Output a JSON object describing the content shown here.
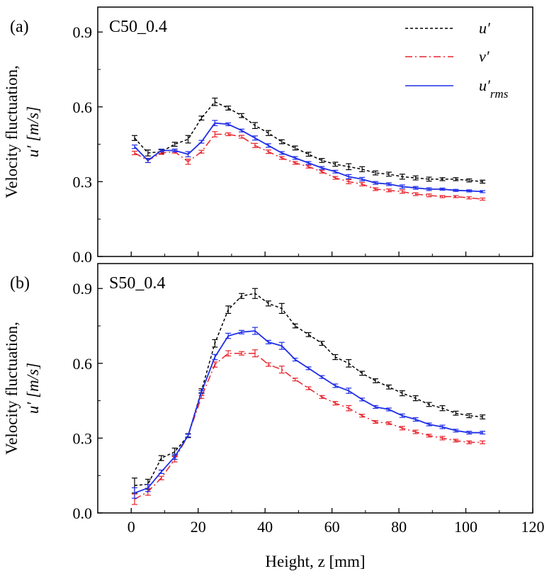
{
  "chart_data": [
    {
      "type": "line",
      "panel_label": "(a)",
      "title": "C50_0.4",
      "ylabel_line1": "Velocity fluctuation,",
      "ylabel_line2": "u′ [m/s]",
      "xlim": [
        -10,
        120
      ],
      "ylim": [
        0.0,
        1.0
      ],
      "yticks": [
        "0.0",
        "0.3",
        "0.6",
        "0.9"
      ],
      "x": [
        1,
        5,
        9,
        13,
        17,
        21,
        25,
        29,
        33,
        37,
        41,
        45,
        49,
        53,
        57,
        61,
        65,
        69,
        73,
        77,
        81,
        85,
        89,
        93,
        97,
        101,
        105
      ],
      "series": [
        {
          "name": "u′",
          "color": "#000000",
          "dash": "4,3",
          "values": [
            0.475,
            0.415,
            0.42,
            0.45,
            0.47,
            0.555,
            0.62,
            0.595,
            0.565,
            0.525,
            0.495,
            0.46,
            0.435,
            0.41,
            0.385,
            0.37,
            0.36,
            0.35,
            0.335,
            0.33,
            0.32,
            0.315,
            0.31,
            0.31,
            0.31,
            0.305,
            0.3
          ],
          "errors": [
            0.01,
            0.012,
            0.008,
            0.008,
            0.015,
            0.008,
            0.015,
            0.008,
            0.008,
            0.012,
            0.01,
            0.008,
            0.008,
            0.008,
            0.008,
            0.008,
            0.012,
            0.01,
            0.008,
            0.008,
            0.01,
            0.008,
            0.008,
            0.006,
            0.006,
            0.006,
            0.006
          ]
        },
        {
          "name": "v′",
          "color": "#e8242c",
          "dash": "10,4,2,4",
          "values": [
            0.415,
            0.385,
            0.415,
            0.42,
            0.38,
            0.42,
            0.49,
            0.49,
            0.48,
            0.445,
            0.42,
            0.395,
            0.375,
            0.36,
            0.34,
            0.315,
            0.3,
            0.29,
            0.27,
            0.265,
            0.26,
            0.25,
            0.245,
            0.24,
            0.24,
            0.235,
            0.23
          ]
        },
        {
          "name": "u′_rms",
          "color": "#1f2fe8",
          "dash": "",
          "values": [
            0.44,
            0.385,
            0.425,
            0.425,
            0.41,
            0.46,
            0.535,
            0.53,
            0.505,
            0.475,
            0.445,
            0.415,
            0.395,
            0.375,
            0.355,
            0.34,
            0.32,
            0.31,
            0.295,
            0.29,
            0.28,
            0.275,
            0.27,
            0.27,
            0.265,
            0.263,
            0.26
          ]
        }
      ]
    },
    {
      "type": "line",
      "panel_label": "(b)",
      "title": "S50_0.4",
      "ylabel_line1": "Velocity fluctuation,",
      "ylabel_line2": "u′ [m/s]",
      "xlabel": "Height, z [mm]",
      "xlim": [
        -10,
        120
      ],
      "ylim": [
        0.0,
        1.0
      ],
      "xticks": [
        "0",
        "20",
        "40",
        "60",
        "80",
        "100",
        "120"
      ],
      "yticks": [
        "0.0",
        "0.3",
        "0.6",
        "0.9"
      ],
      "x": [
        1,
        5,
        9,
        13,
        17,
        21,
        25,
        29,
        33,
        37,
        41,
        45,
        49,
        53,
        57,
        61,
        65,
        69,
        73,
        77,
        81,
        85,
        89,
        93,
        97,
        101,
        105
      ],
      "series": [
        {
          "name": "u′",
          "color": "#000000",
          "dash": "4,3",
          "values": [
            0.11,
            0.115,
            0.22,
            0.245,
            0.31,
            0.49,
            0.68,
            0.815,
            0.87,
            0.88,
            0.84,
            0.82,
            0.75,
            0.715,
            0.68,
            0.625,
            0.6,
            0.56,
            0.53,
            0.505,
            0.48,
            0.46,
            0.435,
            0.42,
            0.4,
            0.39,
            0.385
          ],
          "errors": [
            0.03,
            0.02,
            0.01,
            0.015,
            0.008,
            0.008,
            0.015,
            0.015,
            0.01,
            0.02,
            0.01,
            0.02,
            0.008,
            0.008,
            0.008,
            0.01,
            0.015,
            0.008,
            0.008,
            0.008,
            0.01,
            0.01,
            0.008,
            0.01,
            0.008,
            0.008,
            0.008
          ]
        },
        {
          "name": "v′",
          "color": "#e8242c",
          "dash": "10,4,2,4",
          "values": [
            0.055,
            0.085,
            0.14,
            0.215,
            0.31,
            0.465,
            0.595,
            0.64,
            0.64,
            0.64,
            0.595,
            0.575,
            0.535,
            0.5,
            0.465,
            0.44,
            0.42,
            0.39,
            0.365,
            0.36,
            0.34,
            0.325,
            0.31,
            0.3,
            0.29,
            0.283,
            0.283
          ]
        },
        {
          "name": "u′_rms",
          "color": "#1f2fe8",
          "dash": "",
          "values": [
            0.08,
            0.1,
            0.165,
            0.225,
            0.31,
            0.485,
            0.625,
            0.71,
            0.725,
            0.73,
            0.685,
            0.67,
            0.615,
            0.58,
            0.545,
            0.51,
            0.49,
            0.455,
            0.425,
            0.415,
            0.39,
            0.375,
            0.355,
            0.345,
            0.33,
            0.322,
            0.322
          ]
        }
      ]
    }
  ],
  "legend": {
    "placement": "top-right",
    "entries": [
      {
        "label": "u′",
        "color": "#000000",
        "dash": "4,3"
      },
      {
        "label": "v′",
        "color": "#e8242c",
        "dash": "10,4,2,4"
      },
      {
        "label": "u′",
        "sub": "rms",
        "color": "#1f2fe8",
        "dash": ""
      }
    ]
  }
}
